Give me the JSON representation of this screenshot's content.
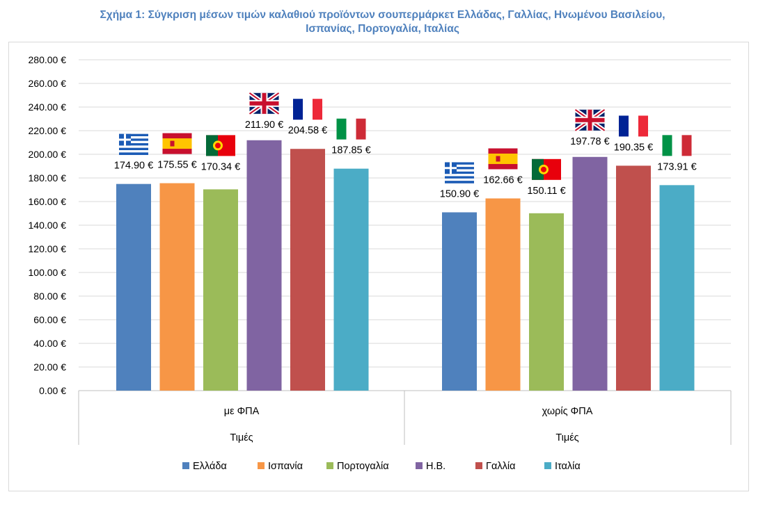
{
  "chart_data": {
    "type": "bar",
    "title_line1": "Σχήμα 1: Σύγκριση μέσων τιμών καλαθιού προϊόντων σουπερμάρκετ Ελλάδας, Γαλλίας, Ηνωμένου Βασιλείου,",
    "title_line2": "Ισπανίας, Πορτογαλία, Ιταλίας",
    "categories": [
      "με ΦΠΑ",
      "χωρίς ΦΠΑ"
    ],
    "category_group_label": "Τιμές",
    "series": [
      {
        "name": "Ελλάδα",
        "color": "#4f81bd",
        "flag": "greece-flag-icon",
        "values": [
          174.9,
          150.9
        ],
        "labels": [
          "174.90 €",
          "150.90 €"
        ]
      },
      {
        "name": "Ισπανία",
        "color": "#f79646",
        "flag": "spain-flag-icon",
        "values": [
          175.55,
          162.66
        ],
        "labels": [
          "175.55 €",
          "162.66 €"
        ]
      },
      {
        "name": "Πορτογαλία",
        "color": "#9bbb59",
        "flag": "portugal-flag-icon",
        "values": [
          170.34,
          150.11
        ],
        "labels": [
          "170.34 €",
          "150.11 €"
        ]
      },
      {
        "name": "Η.Β.",
        "color": "#8064a2",
        "flag": "uk-flag-icon",
        "values": [
          211.9,
          197.78
        ],
        "labels": [
          "211.90 €",
          "197.78 €"
        ]
      },
      {
        "name": "Γαλλία",
        "color": "#c0504d",
        "flag": "france-flag-icon",
        "values": [
          204.58,
          190.35
        ],
        "labels": [
          "204.58 €",
          "190.35 €"
        ]
      },
      {
        "name": "Ιταλία",
        "color": "#4bacc6",
        "flag": "italy-flag-icon",
        "values": [
          187.85,
          173.91
        ],
        "labels": [
          "187.85 €",
          "173.91 €"
        ]
      }
    ],
    "yticks": [
      "0.00 €",
      "20.00 €",
      "40.00 €",
      "60.00 €",
      "80.00 €",
      "100.00 €",
      "120.00 €",
      "140.00 €",
      "160.00 €",
      "180.00 €",
      "200.00 €",
      "220.00 €",
      "240.00 €",
      "260.00 €",
      "280.00 €"
    ],
    "ylim": [
      0,
      280
    ],
    "grid": true,
    "legend_position": "bottom"
  }
}
